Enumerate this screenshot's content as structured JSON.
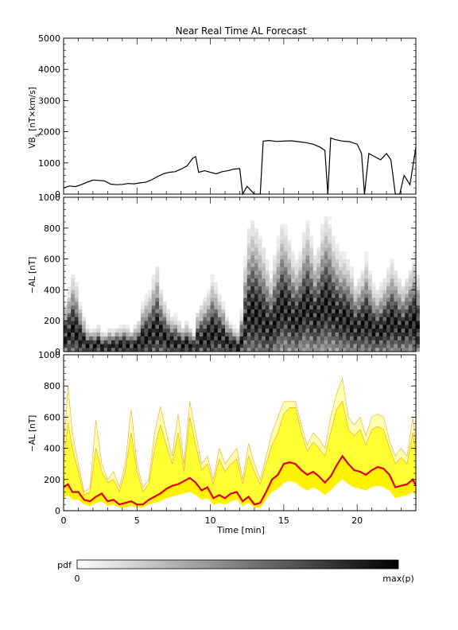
{
  "title": "Near Real Time AL Forecast",
  "colorbar": {
    "label": "pdf",
    "min_label": "0",
    "max_label": "max(p)"
  },
  "x_axis": {
    "label": "Time [min]",
    "range": [
      0,
      24
    ],
    "ticks": [
      0,
      5,
      10,
      15,
      20
    ],
    "tick_labels": [
      "0",
      "5",
      "10",
      "15",
      "20"
    ]
  },
  "chart_data": [
    {
      "type": "line",
      "ylabel": "VB",
      "ylabel_sub": "s",
      "ylabel_units": " [nT×km/s]",
      "ylim": [
        0,
        5000
      ],
      "yticks": [
        0,
        1000,
        2000,
        3000,
        4000,
        5000
      ],
      "ytick_labels": [
        "0",
        "1000",
        "2000",
        "3000",
        "4000",
        "5000"
      ],
      "x": [
        0.0,
        0.4,
        0.8,
        1.2,
        1.6,
        2.0,
        2.4,
        2.8,
        3.2,
        3.6,
        4.0,
        4.4,
        4.8,
        5.2,
        5.6,
        6.0,
        6.4,
        6.8,
        7.2,
        7.6,
        8.0,
        8.4,
        8.8,
        9.0,
        9.2,
        9.6,
        10.0,
        10.4,
        10.8,
        11.2,
        11.6,
        12.0,
        12.2,
        12.5,
        13.0,
        13.4,
        13.6,
        14.0,
        14.5,
        15.0,
        15.5,
        16.0,
        16.5,
        17.0,
        17.5,
        17.8,
        18.0,
        18.2,
        18.5,
        19.0,
        19.5,
        20.0,
        20.3,
        20.5,
        20.8,
        21.2,
        21.6,
        22.0,
        22.3,
        22.6,
        22.9,
        23.2,
        23.6,
        24.0
      ],
      "values": [
        200,
        260,
        240,
        300,
        380,
        450,
        440,
        420,
        320,
        300,
        310,
        340,
        330,
        360,
        380,
        460,
        560,
        650,
        700,
        720,
        800,
        900,
        1150,
        1200,
        700,
        750,
        700,
        650,
        720,
        750,
        800,
        820,
        0,
        250,
        0,
        0,
        1700,
        1720,
        1690,
        1700,
        1710,
        1680,
        1650,
        1600,
        1500,
        1400,
        0,
        1800,
        1750,
        1700,
        1680,
        1600,
        1300,
        0,
        1300,
        1200,
        1100,
        1300,
        1100,
        0,
        0,
        600,
        300,
        1500
      ]
    },
    {
      "type": "heatmap",
      "ylabel": "−AL [nT]",
      "ylim": [
        0,
        1000
      ],
      "yticks": [
        0,
        200,
        400,
        600,
        800,
        1000
      ],
      "ytick_labels": [
        "0",
        "200",
        "400",
        "600",
        "800",
        "1000"
      ],
      "xlim": [
        0,
        24
      ],
      "bins": {
        "x_step": 0.25,
        "y_step": 25
      },
      "median_al": [
        100,
        120,
        150,
        130,
        90,
        60,
        40,
        40,
        40,
        50,
        30,
        30,
        40,
        35,
        40,
        40,
        45,
        40,
        35,
        40,
        50,
        80,
        90,
        100,
        130,
        150,
        120,
        100,
        70,
        60,
        60,
        50,
        40,
        50,
        40,
        30,
        70,
        80,
        90,
        100,
        130,
        120,
        100,
        90,
        60,
        50,
        40,
        30,
        70,
        180,
        250,
        260,
        250,
        230,
        200,
        170,
        150,
        200,
        240,
        300,
        280,
        250,
        220,
        200,
        230,
        280,
        300,
        260,
        220,
        250,
        290,
        320,
        300,
        260,
        240,
        220,
        220,
        200,
        180,
        150,
        160,
        180,
        200,
        170,
        140,
        130,
        140,
        160,
        180,
        200,
        180,
        160,
        150,
        170,
        190,
        200,
        160
      ],
      "spread_al": [
        150,
        200,
        250,
        220,
        150,
        100,
        60,
        50,
        50,
        60,
        40,
        40,
        50,
        50,
        60,
        60,
        70,
        60,
        50,
        70,
        90,
        150,
        180,
        200,
        250,
        300,
        200,
        150,
        120,
        100,
        100,
        80,
        60,
        80,
        60,
        40,
        120,
        150,
        180,
        200,
        250,
        220,
        180,
        150,
        100,
        80,
        60,
        50,
        120,
        300,
        400,
        450,
        420,
        380,
        350,
        300,
        250,
        300,
        350,
        400,
        380,
        350,
        300,
        280,
        300,
        350,
        400,
        350,
        300,
        320,
        380,
        420,
        400,
        350,
        320,
        300,
        300,
        280,
        250,
        200,
        220,
        250,
        300,
        250,
        200,
        180,
        200,
        220,
        250,
        280,
        250,
        220,
        200,
        220,
        250,
        300,
        250
      ]
    },
    {
      "type": "area",
      "ylabel": "−AL [nT]",
      "ylim": [
        0,
        1000
      ],
      "yticks": [
        0,
        200,
        400,
        600,
        800,
        1000
      ],
      "ytick_labels": [
        "0",
        "200",
        "400",
        "600",
        "800",
        "1000"
      ],
      "x": [
        0.0,
        0.3,
        0.6,
        1.0,
        1.4,
        1.8,
        2.2,
        2.6,
        3.0,
        3.4,
        3.8,
        4.2,
        4.6,
        5.0,
        5.4,
        5.8,
        6.2,
        6.6,
        7.0,
        7.4,
        7.8,
        8.2,
        8.6,
        9.0,
        9.4,
        9.8,
        10.2,
        10.6,
        11.0,
        11.4,
        11.8,
        12.2,
        12.6,
        13.0,
        13.4,
        13.8,
        14.2,
        14.6,
        15.0,
        15.4,
        15.8,
        16.2,
        16.6,
        17.0,
        17.4,
        17.8,
        18.2,
        18.6,
        19.0,
        19.4,
        19.8,
        20.2,
        20.6,
        21.0,
        21.4,
        21.8,
        22.2,
        22.6,
        23.0,
        23.4,
        23.8,
        24.0
      ],
      "series": [
        {
          "name": "",
          "role": "upper_outer",
          "values": [
            400,
            800,
            500,
            300,
            120,
            150,
            580,
            300,
            200,
            250,
            150,
            300,
            650,
            300,
            150,
            200,
            500,
            670,
            500,
            350,
            620,
            300,
            700,
            500,
            300,
            350,
            200,
            400,
            300,
            350,
            400,
            200,
            430,
            300,
            200,
            350,
            500,
            600,
            700,
            700,
            700,
            550,
            420,
            500,
            460,
            400,
            600,
            750,
            850,
            600,
            550,
            600,
            480,
            600,
            620,
            600,
            450,
            350,
            400,
            350,
            600,
            420
          ]
        },
        {
          "name": "",
          "role": "upper_inner",
          "values": [
            300,
            560,
            400,
            250,
            100,
            120,
            400,
            250,
            180,
            200,
            120,
            250,
            500,
            250,
            120,
            170,
            400,
            550,
            420,
            300,
            500,
            250,
            600,
            420,
            260,
            300,
            170,
            330,
            250,
            300,
            330,
            170,
            350,
            250,
            170,
            300,
            420,
            500,
            620,
            660,
            660,
            500,
            380,
            440,
            400,
            350,
            500,
            650,
            700,
            520,
            480,
            520,
            420,
            520,
            540,
            520,
            400,
            300,
            340,
            300,
            500,
            360
          ]
        },
        {
          "name": "",
          "role": "median",
          "values": [
            150,
            170,
            120,
            120,
            70,
            60,
            90,
            110,
            60,
            70,
            40,
            50,
            60,
            40,
            40,
            70,
            90,
            110,
            140,
            160,
            170,
            190,
            210,
            180,
            130,
            150,
            80,
            100,
            80,
            110,
            120,
            60,
            90,
            40,
            50,
            120,
            200,
            230,
            300,
            310,
            300,
            260,
            230,
            250,
            220,
            180,
            220,
            290,
            350,
            300,
            260,
            250,
            230,
            260,
            280,
            270,
            230,
            150,
            160,
            170,
            200,
            160
          ]
        },
        {
          "name": "",
          "role": "lower",
          "values": [
            80,
            100,
            70,
            70,
            40,
            30,
            50,
            60,
            30,
            40,
            20,
            20,
            30,
            20,
            20,
            40,
            50,
            60,
            80,
            90,
            100,
            110,
            120,
            100,
            70,
            80,
            40,
            50,
            40,
            60,
            70,
            30,
            50,
            20,
            20,
            70,
            120,
            140,
            180,
            190,
            180,
            150,
            130,
            150,
            130,
            100,
            130,
            170,
            200,
            170,
            150,
            140,
            130,
            150,
            160,
            150,
            130,
            80,
            90,
            100,
            120,
            90
          ]
        }
      ]
    }
  ]
}
